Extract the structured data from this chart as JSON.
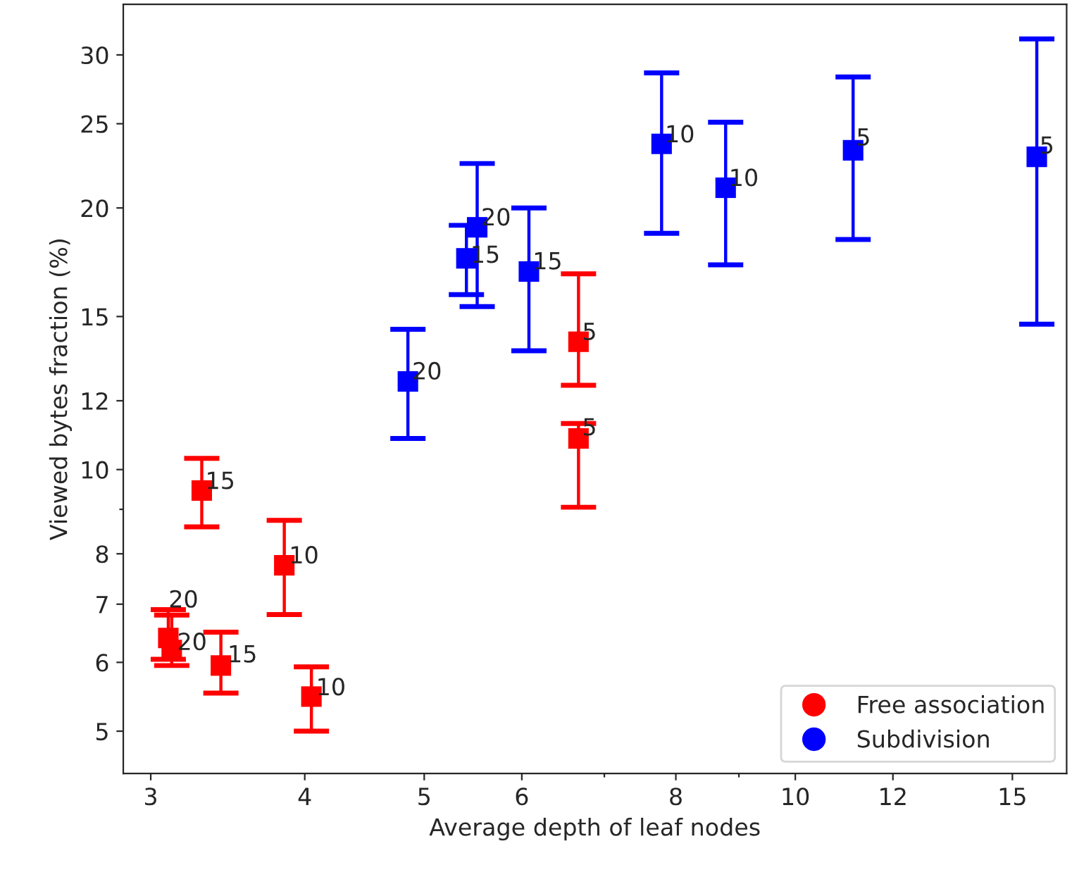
{
  "chart_data": {
    "type": "scatter",
    "xlabel": "Average depth of leaf nodes",
    "ylabel": "Viewed bytes fraction (%)",
    "log": "xy",
    "marker": "square",
    "legend": "bottom right",
    "grid": false,
    "xlim": [
      2.85,
      16.6
    ],
    "xticks": [
      3,
      4,
      5,
      6,
      {
        "value": 7,
        "label": null
      },
      8,
      {
        "value": 9,
        "label": null
      },
      10,
      12,
      15
    ],
    "ylim": [
      4.47,
      34.3
    ],
    "yticks": [
      5,
      6,
      7,
      8,
      {
        "value": 9,
        "label": null
      },
      10,
      12,
      15,
      20,
      25,
      30
    ],
    "series": [
      {
        "name": "Free association",
        "color": "#ff0000",
        "x": [
          3.1,
          3.12,
          3.3,
          3.42,
          3.85,
          4.05,
          6.67,
          6.67
        ],
        "values": [
          6.4,
          6.2,
          9.46,
          5.95,
          7.76,
          5.48,
          14.03,
          10.86
        ],
        "errors": [
          [
            6.05,
            6.9
          ],
          [
            5.95,
            6.8
          ],
          [
            8.59,
            10.3
          ],
          [
            5.53,
            6.5
          ],
          [
            6.81,
            8.74
          ],
          [
            5.0,
            5.93
          ],
          [
            12.5,
            16.8
          ],
          [
            9.05,
            11.3
          ]
        ]
      },
      {
        "name": "Subdivision",
        "color": "#0000ff",
        "x": [
          4.85,
          5.41,
          5.52,
          6.08,
          7.79,
          8.78,
          11.14,
          15.7
        ],
        "values": [
          12.63,
          17.5,
          19.0,
          16.9,
          23.7,
          21.1,
          23.3,
          22.9
        ],
        "errors": [
          [
            10.86,
            14.5
          ],
          [
            15.9,
            19.1
          ],
          [
            15.4,
            22.5
          ],
          [
            13.7,
            20.0
          ],
          [
            18.7,
            28.6
          ],
          [
            17.2,
            25.1
          ],
          [
            18.4,
            28.3
          ],
          [
            14.7,
            31.3
          ]
        ]
      }
    ],
    "annotations": [
      {
        "text": "20",
        "x": 3.09,
        "y": 6.94
      },
      {
        "text": "20",
        "x": 3.14,
        "y": 6.2
      },
      {
        "text": "15",
        "x": 3.31,
        "y": 9.5
      },
      {
        "text": "15",
        "x": 3.45,
        "y": 6.0
      },
      {
        "text": "10",
        "x": 3.87,
        "y": 7.8
      },
      {
        "text": "10",
        "x": 4.07,
        "y": 5.5
      },
      {
        "text": "5",
        "x": 6.69,
        "y": 14.1
      },
      {
        "text": "5",
        "x": 6.69,
        "y": 10.95
      },
      {
        "text": "20",
        "x": 4.87,
        "y": 12.7
      },
      {
        "text": "15",
        "x": 5.43,
        "y": 17.3
      },
      {
        "text": "20",
        "x": 5.54,
        "y": 19.1
      },
      {
        "text": "15",
        "x": 6.1,
        "y": 17.0
      },
      {
        "text": "10",
        "x": 7.81,
        "y": 23.8
      },
      {
        "text": "10",
        "x": 8.8,
        "y": 21.2
      },
      {
        "text": "5",
        "x": 11.16,
        "y": 23.6
      },
      {
        "text": "5",
        "x": 15.72,
        "y": 23.1
      }
    ]
  }
}
